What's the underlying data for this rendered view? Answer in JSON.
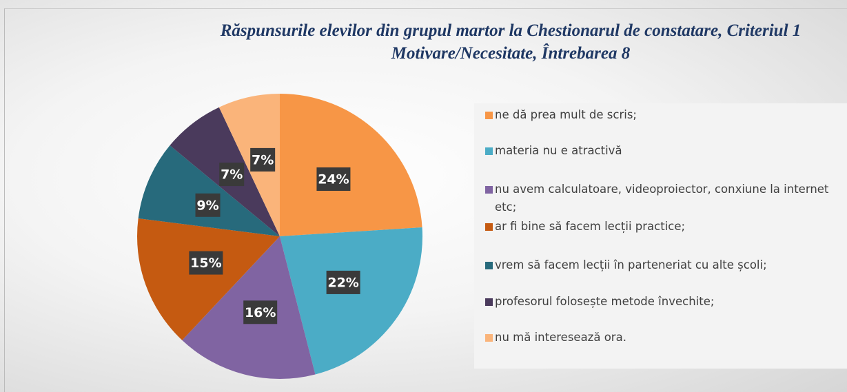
{
  "chart_data": {
    "type": "pie",
    "title": "Răspunsurile elevilor din grupul martor la Chestionarul de constatare, Criteriul 1 Motivare/Necesitate, Întrebarea 8",
    "categories": [
      "ne dă prea mult de scris;",
      "materia nu e atractivă",
      "nu avem calculatoare, videoproiector, conxiune la internet etc;",
      "ar fi bine să facem lecții practice;",
      "vrem să facem lecții în parteneriat cu alte școli;",
      "profesorul folosește metode învechite;",
      "nu mă interesează ora."
    ],
    "values": [
      24,
      22,
      16,
      15,
      9,
      7,
      7
    ],
    "value_labels": [
      "24%",
      "22%",
      "16%",
      "15%",
      "9%",
      "7%",
      "7%"
    ],
    "colors": [
      "#f79646",
      "#4bacc6",
      "#8064a2",
      "#c55a11",
      "#276a7c",
      "#4a3a5c",
      "#fab47a"
    ]
  }
}
